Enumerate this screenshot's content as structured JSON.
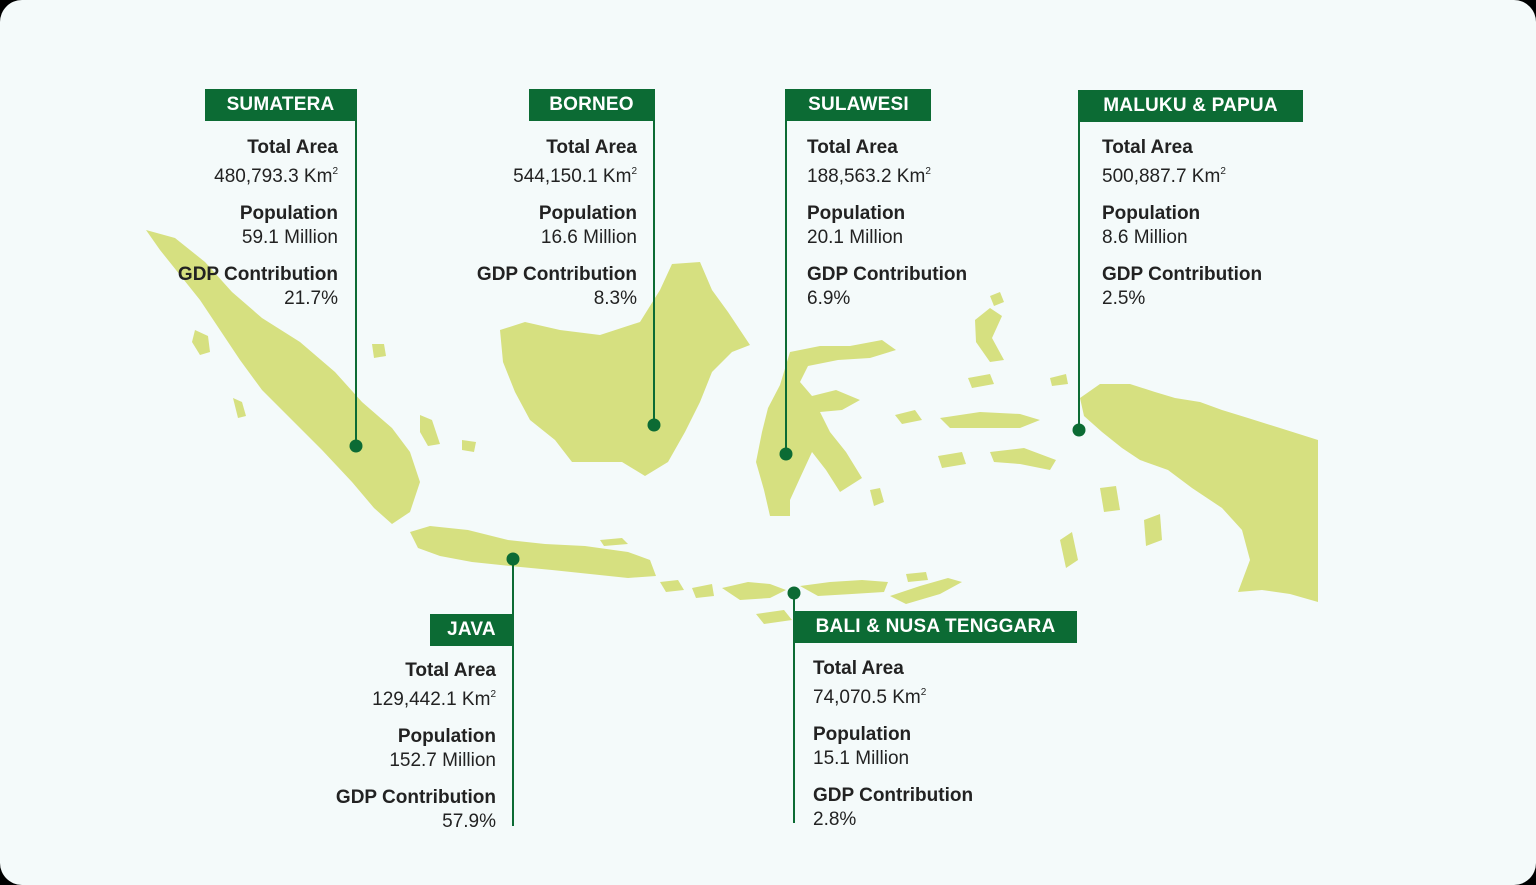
{
  "colors": {
    "background": "#f4fafa",
    "land": "#d6e080",
    "accent": "#0c6b34"
  },
  "regions": [
    {
      "name": "SUMATERA",
      "total_area_label": "Total Area",
      "total_area_value": "480,793.3 Km",
      "area_unit_sup": "2",
      "population_label": "Population",
      "population_value": "59.1 Million",
      "gdp_label": "GDP Contribution",
      "gdp_value": "21.7%"
    },
    {
      "name": "BORNEO",
      "total_area_label": "Total Area",
      "total_area_value": "544,150.1 Km",
      "area_unit_sup": "2",
      "population_label": "Population",
      "population_value": "16.6 Million",
      "gdp_label": "GDP Contribution",
      "gdp_value": "8.3%"
    },
    {
      "name": "SULAWESI",
      "total_area_label": "Total Area",
      "total_area_value": "188,563.2 Km",
      "area_unit_sup": "2",
      "population_label": "Population",
      "population_value": "20.1 Million",
      "gdp_label": "GDP Contribution",
      "gdp_value": "6.9%"
    },
    {
      "name": "MALUKU & PAPUA",
      "total_area_label": "Total Area",
      "total_area_value": "500,887.7 Km",
      "area_unit_sup": "2",
      "population_label": "Population",
      "population_value": "8.6 Million",
      "gdp_label": "GDP Contribution",
      "gdp_value": "2.5%"
    },
    {
      "name": "JAVA",
      "total_area_label": "Total Area",
      "total_area_value": "129,442.1 Km",
      "area_unit_sup": "2",
      "population_label": "Population",
      "population_value": "152.7 Million",
      "gdp_label": "GDP Contribution",
      "gdp_value": "57.9%"
    },
    {
      "name": "BALI & NUSA TENGGARA",
      "total_area_label": "Total Area",
      "total_area_value": "74,070.5 Km",
      "area_unit_sup": "2",
      "population_label": "Population",
      "population_value": "15.1 Million",
      "gdp_label": "GDP Contribution",
      "gdp_value": "2.8%"
    }
  ]
}
